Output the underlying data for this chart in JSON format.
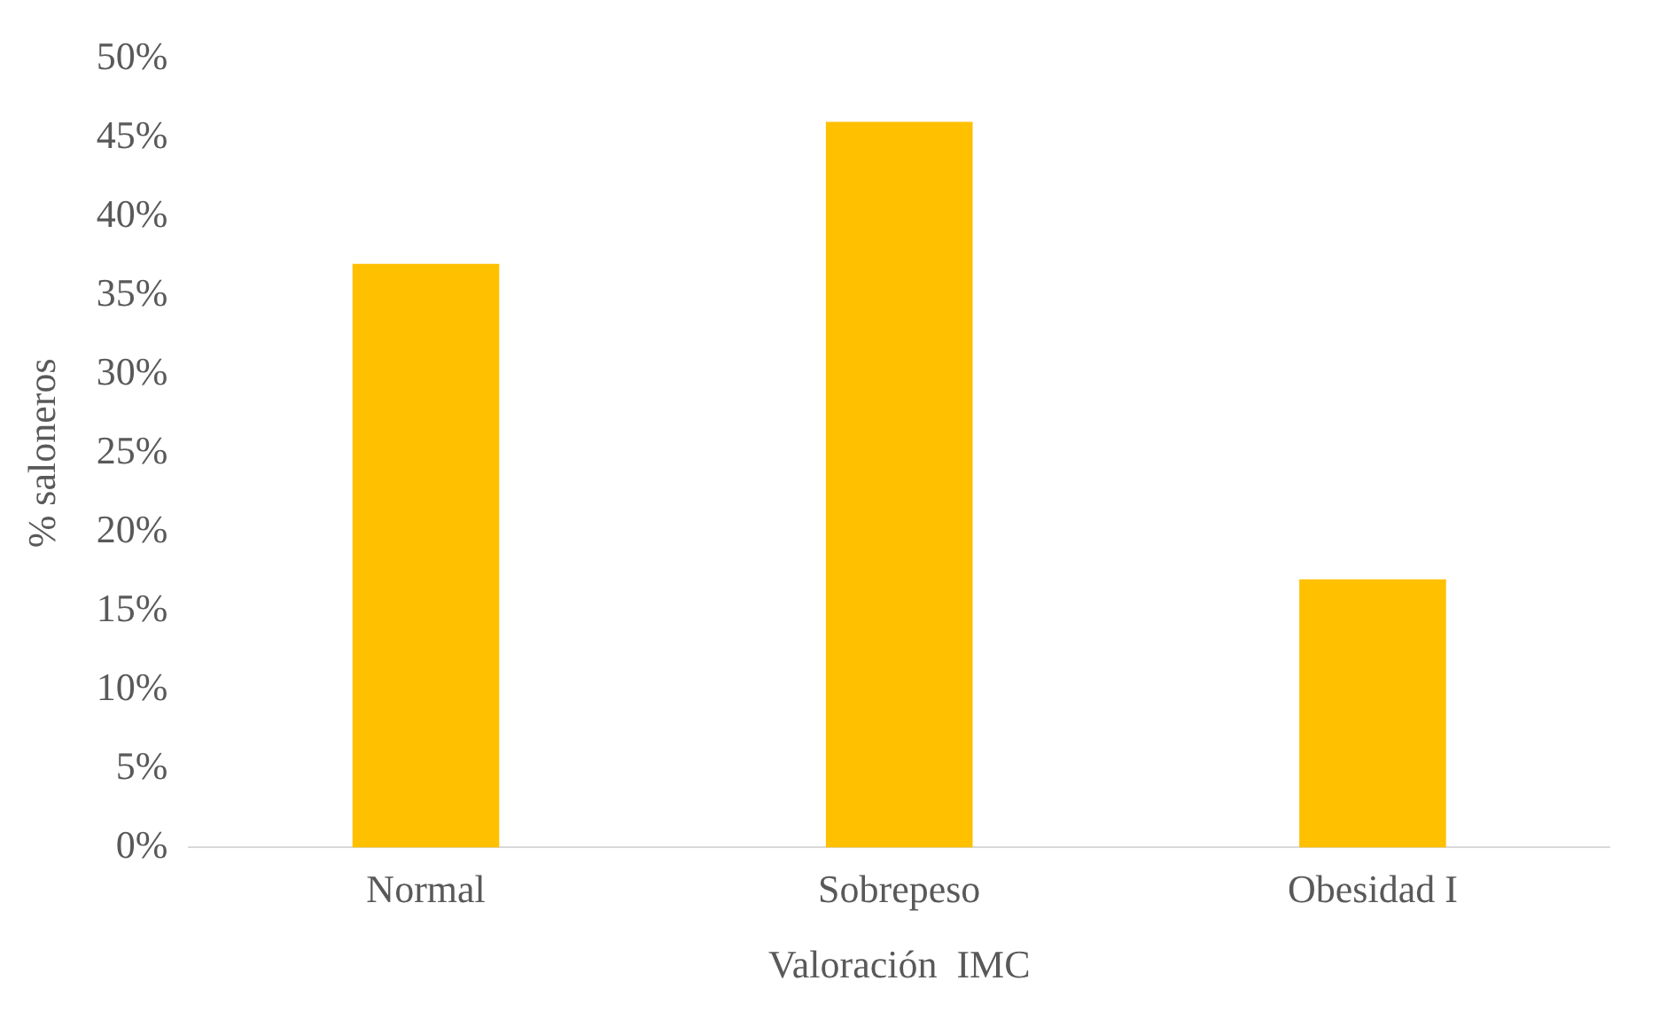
{
  "chart_data": {
    "type": "bar",
    "xlabel": "Valoración  IMC",
    "ylabel": "% saloneros",
    "categories": [
      "Normal",
      "Sobrepeso",
      "Obesidad I"
    ],
    "values": [
      37,
      46,
      17
    ],
    "color": "#ffc000",
    "ylim": [
      0,
      50
    ],
    "yticks": [
      {
        "value": 0,
        "label": "0%"
      },
      {
        "value": 5,
        "label": "5%"
      },
      {
        "value": 10,
        "label": "10%"
      },
      {
        "value": 15,
        "label": "15%"
      },
      {
        "value": 20,
        "label": "20%"
      },
      {
        "value": 25,
        "label": "25%"
      },
      {
        "value": 30,
        "label": "30%"
      },
      {
        "value": 35,
        "label": "35%"
      },
      {
        "value": 40,
        "label": "40%"
      },
      {
        "value": 45,
        "label": "45%"
      },
      {
        "value": 50,
        "label": "50%"
      }
    ],
    "grid": false,
    "legend": false
  }
}
